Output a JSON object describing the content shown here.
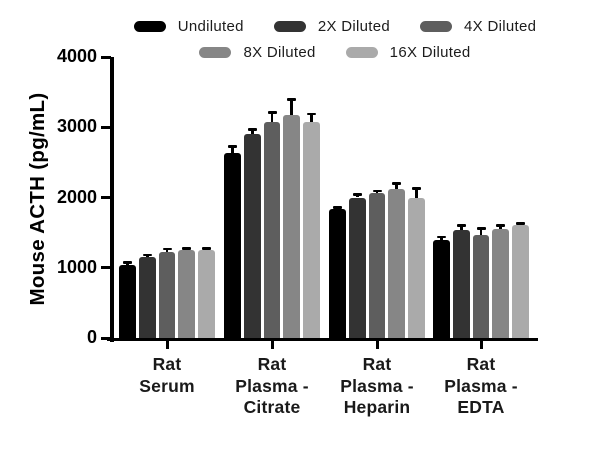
{
  "legend": {
    "items": [
      {
        "label": "Undiluted",
        "color": "#000000"
      },
      {
        "label": "2X Diluted",
        "color": "#333333"
      },
      {
        "label": "4X Diluted",
        "color": "#5e5e5e"
      },
      {
        "label": "8X Diluted",
        "color": "#868686"
      },
      {
        "label": "16X Diluted",
        "color": "#aaaaaa"
      }
    ],
    "rows": [
      3,
      2
    ]
  },
  "chart_data": {
    "type": "bar",
    "title": "",
    "ylabel": "Mouse ACTH (pg/mL)",
    "xlabel": "",
    "ylim": [
      0,
      4000
    ],
    "yticks": [
      0,
      1000,
      2000,
      3000,
      4000
    ],
    "grid": false,
    "legend_position": "top",
    "categories": [
      [
        "Rat",
        "Serum"
      ],
      [
        "Rat",
        "Plasma -",
        "Citrate"
      ],
      [
        "Rat",
        "Plasma -",
        "Heparin"
      ],
      [
        "Rat",
        "Plasma -",
        "EDTA"
      ]
    ],
    "series": [
      {
        "name": "Undiluted",
        "color": "#000000",
        "values": [
          1040,
          2630,
          1840,
          1400
        ],
        "errors": [
          35,
          100,
          25,
          40
        ]
      },
      {
        "name": "2X Diluted",
        "color": "#333333",
        "values": [
          1160,
          2900,
          2000,
          1540
        ],
        "errors": [
          25,
          70,
          40,
          60
        ]
      },
      {
        "name": "4X Diluted",
        "color": "#5e5e5e",
        "values": [
          1230,
          3070,
          2060,
          1470
        ],
        "errors": [
          40,
          140,
          35,
          90
        ]
      },
      {
        "name": "8X Diluted",
        "color": "#868686",
        "values": [
          1250,
          3180,
          2120,
          1550
        ],
        "errors": [
          30,
          220,
          80,
          55
        ]
      },
      {
        "name": "16X Diluted",
        "color": "#aaaaaa",
        "values": [
          1250,
          3070,
          1990,
          1610
        ],
        "errors": [
          30,
          120,
          140,
          25
        ]
      }
    ],
    "units": "pg/mL"
  },
  "layout_note": ""
}
